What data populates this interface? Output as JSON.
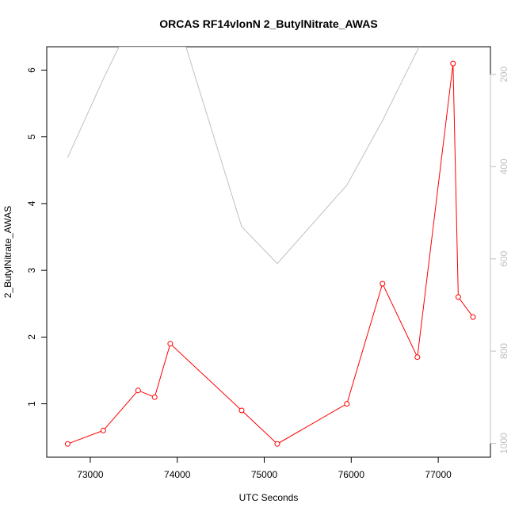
{
  "chart_data": {
    "type": "line",
    "title": "ORCAS RF14vlonN 2_ButylNitrate_AWAS",
    "xlabel": "UTC Seconds",
    "ylabel": "2_ButylNitrate_AWAS",
    "xlim": [
      72500,
      77600
    ],
    "ylim": [
      0.2,
      6.35
    ],
    "x_ticks": [
      73000,
      74000,
      75000,
      76000,
      77000
    ],
    "y_ticks": [
      1,
      2,
      3,
      4,
      5,
      6
    ],
    "series": [
      {
        "color": "#ff0000",
        "marker": "circle",
        "x": [
          72740,
          73150,
          73550,
          73740,
          73920,
          74740,
          75150,
          75950,
          76360,
          76760,
          77170,
          77230,
          77400
        ],
        "y": [
          0.4,
          0.6,
          1.2,
          1.1,
          1.9,
          0.9,
          0.4,
          1.0,
          2.8,
          1.7,
          6.1,
          2.6,
          2.3
        ]
      }
    ],
    "secondary_axis": {
      "reversed": true,
      "ylim": [
        1030,
        140
      ],
      "ticks": [
        200,
        400,
        600,
        800,
        1000
      ],
      "color": "#c0c0c0",
      "series": {
        "color": "#c0c0c0",
        "x": [
          72740,
          73150,
          73330,
          74100,
          74740,
          75150,
          75950,
          76360,
          76780
        ],
        "y": [
          380,
          210,
          140,
          140,
          530,
          610,
          440,
          300,
          140
        ]
      }
    }
  }
}
